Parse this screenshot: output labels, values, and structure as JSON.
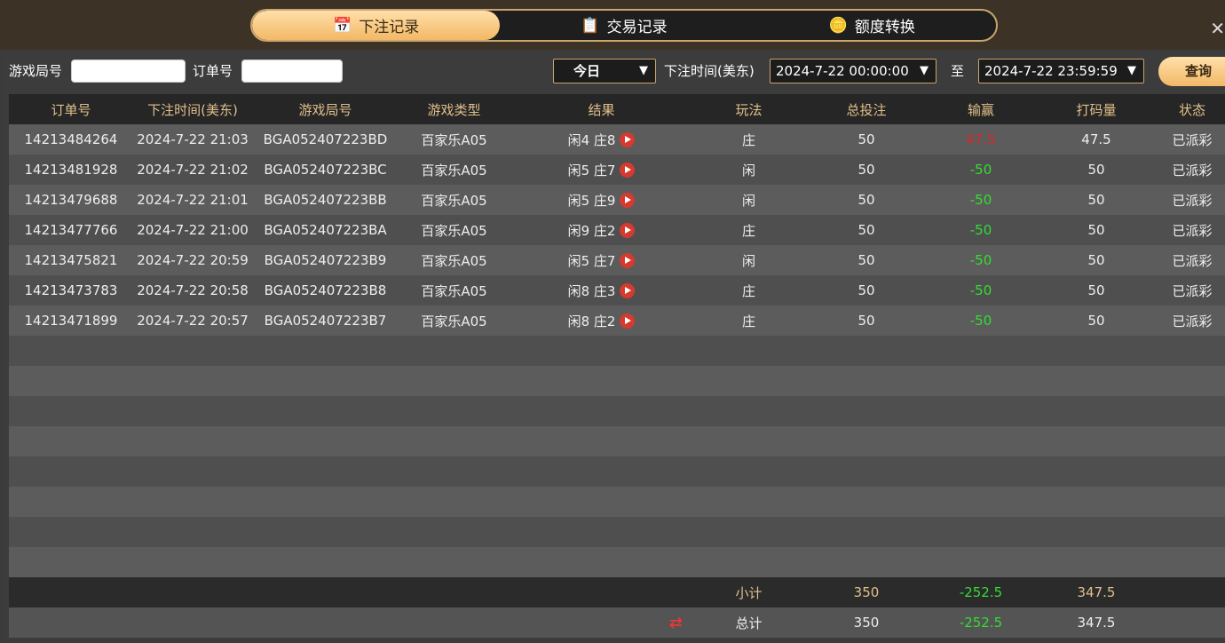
{
  "tabs": [
    {
      "label": "下注记录",
      "icon": "calendar-icon",
      "active": true
    },
    {
      "label": "交易记录",
      "icon": "clipboard-icon"
    },
    {
      "label": "额度转换",
      "icon": "coins-icon"
    }
  ],
  "filters": {
    "game_round_label": "游戏局号",
    "game_round_value": "",
    "order_label": "订单号",
    "order_value": "",
    "period": "今日",
    "time_label": "下注时间(美东)",
    "start": "2024-7-22 00:00:00",
    "to_label": "至",
    "end": "2024-7-22 23:59:59",
    "query": "查询"
  },
  "columns": [
    "订单号",
    "下注时间(美东)",
    "游戏局号",
    "游戏类型",
    "结果",
    "玩法",
    "总投注",
    "输赢",
    "打码量",
    "状态"
  ],
  "rows": [
    [
      "14213484264",
      "2024-7-22 21:03",
      "BGA052407223BD",
      "百家乐A05",
      "闲4 庄8",
      "庄",
      "50",
      "47.5",
      "47.5",
      "已派彩"
    ],
    [
      "14213481928",
      "2024-7-22 21:02",
      "BGA052407223BC",
      "百家乐A05",
      "闲5 庄7",
      "闲",
      "50",
      "-50",
      "50",
      "已派彩"
    ],
    [
      "14213479688",
      "2024-7-22 21:01",
      "BGA052407223BB",
      "百家乐A05",
      "闲5 庄9",
      "闲",
      "50",
      "-50",
      "50",
      "已派彩"
    ],
    [
      "14213477766",
      "2024-7-22 21:00",
      "BGA052407223BA",
      "百家乐A05",
      "闲9 庄2",
      "庄",
      "50",
      "-50",
      "50",
      "已派彩"
    ],
    [
      "14213475821",
      "2024-7-22 20:59",
      "BGA052407223B9",
      "百家乐A05",
      "闲5 庄7",
      "闲",
      "50",
      "-50",
      "50",
      "已派彩"
    ],
    [
      "14213473783",
      "2024-7-22 20:58",
      "BGA052407223B8",
      "百家乐A05",
      "闲8 庄3",
      "庄",
      "50",
      "-50",
      "50",
      "已派彩"
    ],
    [
      "14213471899",
      "2024-7-22 20:57",
      "BGA052407223B7",
      "百家乐A05",
      "闲8 庄2",
      "庄",
      "50",
      "-50",
      "50",
      "已派彩"
    ]
  ],
  "subtotal": {
    "label": "小计",
    "bet": "350",
    "winloss": "-252.5",
    "turnover": "347.5"
  },
  "total": {
    "label": "总计",
    "bet": "350",
    "winloss": "-252.5",
    "turnover": "347.5"
  },
  "colors": {
    "accent": "#f2b866",
    "loss": "#33dd33",
    "win": "#d42a2a"
  }
}
